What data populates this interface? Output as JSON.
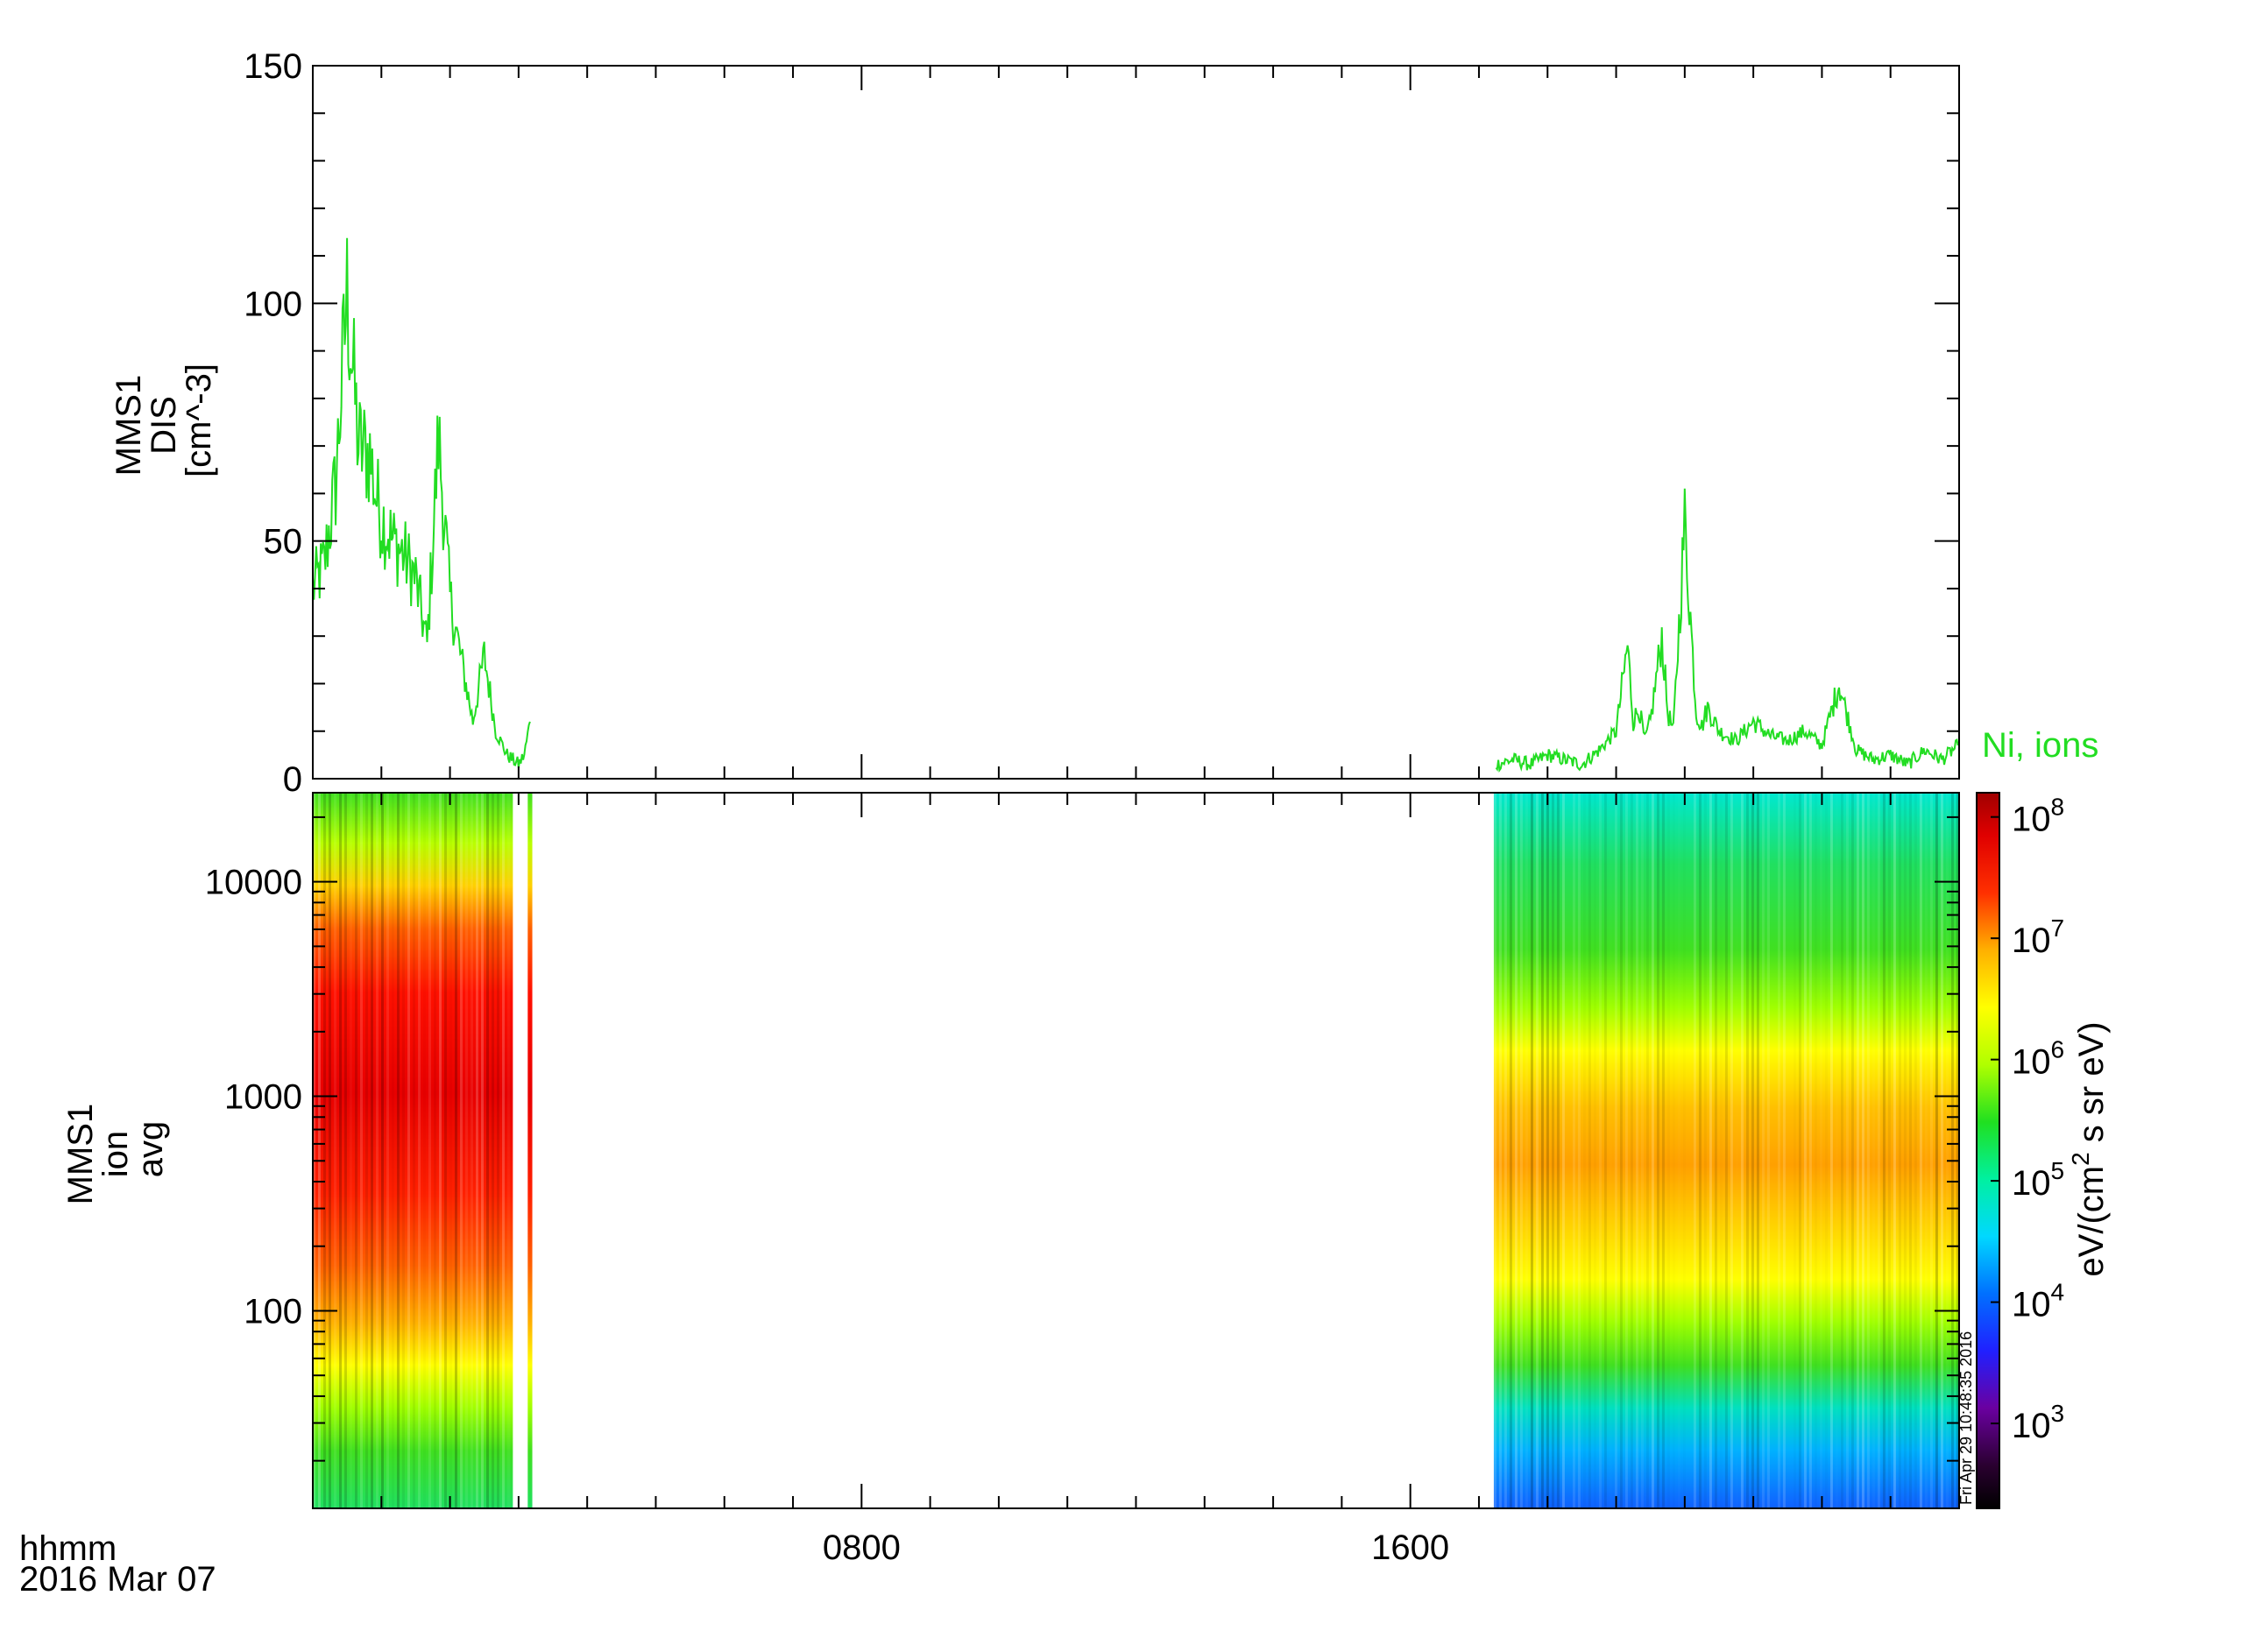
{
  "chart_data": [
    {
      "type": "line",
      "ylabel_lines": [
        "MMS1",
        "DIS",
        "[cm^-3]"
      ],
      "yticks": [
        "0",
        "50",
        "100",
        "150"
      ],
      "ylim": [
        0,
        150
      ],
      "xlim_hours": [
        0,
        24
      ],
      "color": "#22dd22",
      "series": [
        {
          "name": "Ni, ions",
          "segments": [
            {
              "x": [
                "0000",
                "0010",
                "0020",
                "0030",
                "0040",
                "0050",
                "0055",
                "0100",
                "0110",
                "0120",
                "0130",
                "0140",
                "0150",
                "0200",
                "0210",
                "0220",
                "0230",
                "0240",
                "0250",
                "0300",
                "0305",
                "0310"
              ],
              "y": [
                40,
                45,
                62,
                102,
                70,
                68,
                60,
                55,
                50,
                47,
                42,
                28,
                72,
                38,
                25,
                12,
                26,
                10,
                5,
                3,
                5,
                12
              ]
            },
            {
              "x": [
                "1715",
                "1730",
                "1745",
                "1800",
                "1815",
                "1830",
                "1845",
                "1900",
                "1910",
                "1915",
                "1920",
                "1925",
                "1930",
                "1940",
                "1945",
                "1950",
                "2000",
                "2010",
                "2015",
                "2020",
                "2030",
                "2045",
                "2100",
                "2115",
                "2130",
                "2145",
                "2200",
                "2215",
                "2230",
                "2245",
                "2300",
                "2315",
                "2330",
                "2345",
                "2359"
              ],
              "y": [
                3,
                4,
                3,
                5,
                4,
                3,
                6,
                10,
                28,
                12,
                15,
                8,
                12,
                30,
                14,
                10,
                54,
                14,
                11,
                15,
                10,
                8,
                12,
                9,
                8,
                10,
                7,
                20,
                6,
                4,
                5,
                3,
                6,
                4,
                7
              ]
            }
          ]
        }
      ]
    },
    {
      "type": "heatmap",
      "ylabel_lines": [
        "MMS1",
        "ion",
        "avg"
      ],
      "ylog": true,
      "yticks": [
        "100",
        "1000",
        "10000"
      ],
      "ylim": [
        12,
        26000
      ],
      "xlim_hours": [
        0,
        24
      ],
      "x_coverage": [
        [
          "0000",
          "0255"
        ],
        [
          "0308",
          "0312"
        ],
        [
          "1713",
          "2400"
        ]
      ],
      "colorbar": {
        "label": "eV/(cm^2 s sr eV)",
        "log": true,
        "range_exponents": [
          2.3,
          8.2
        ],
        "tick_exponents": [
          "3",
          "4",
          "5",
          "6",
          "7",
          "8"
        ],
        "tick_base": "10"
      }
    }
  ],
  "legend": {
    "label": "Ni, ions"
  },
  "xaxis": {
    "ticks": [
      "0800",
      "1600"
    ],
    "corner_lines": [
      "hhmm",
      "2016 Mar 07"
    ]
  },
  "timestamp": "Fri Apr 29 10:48:35 2016"
}
